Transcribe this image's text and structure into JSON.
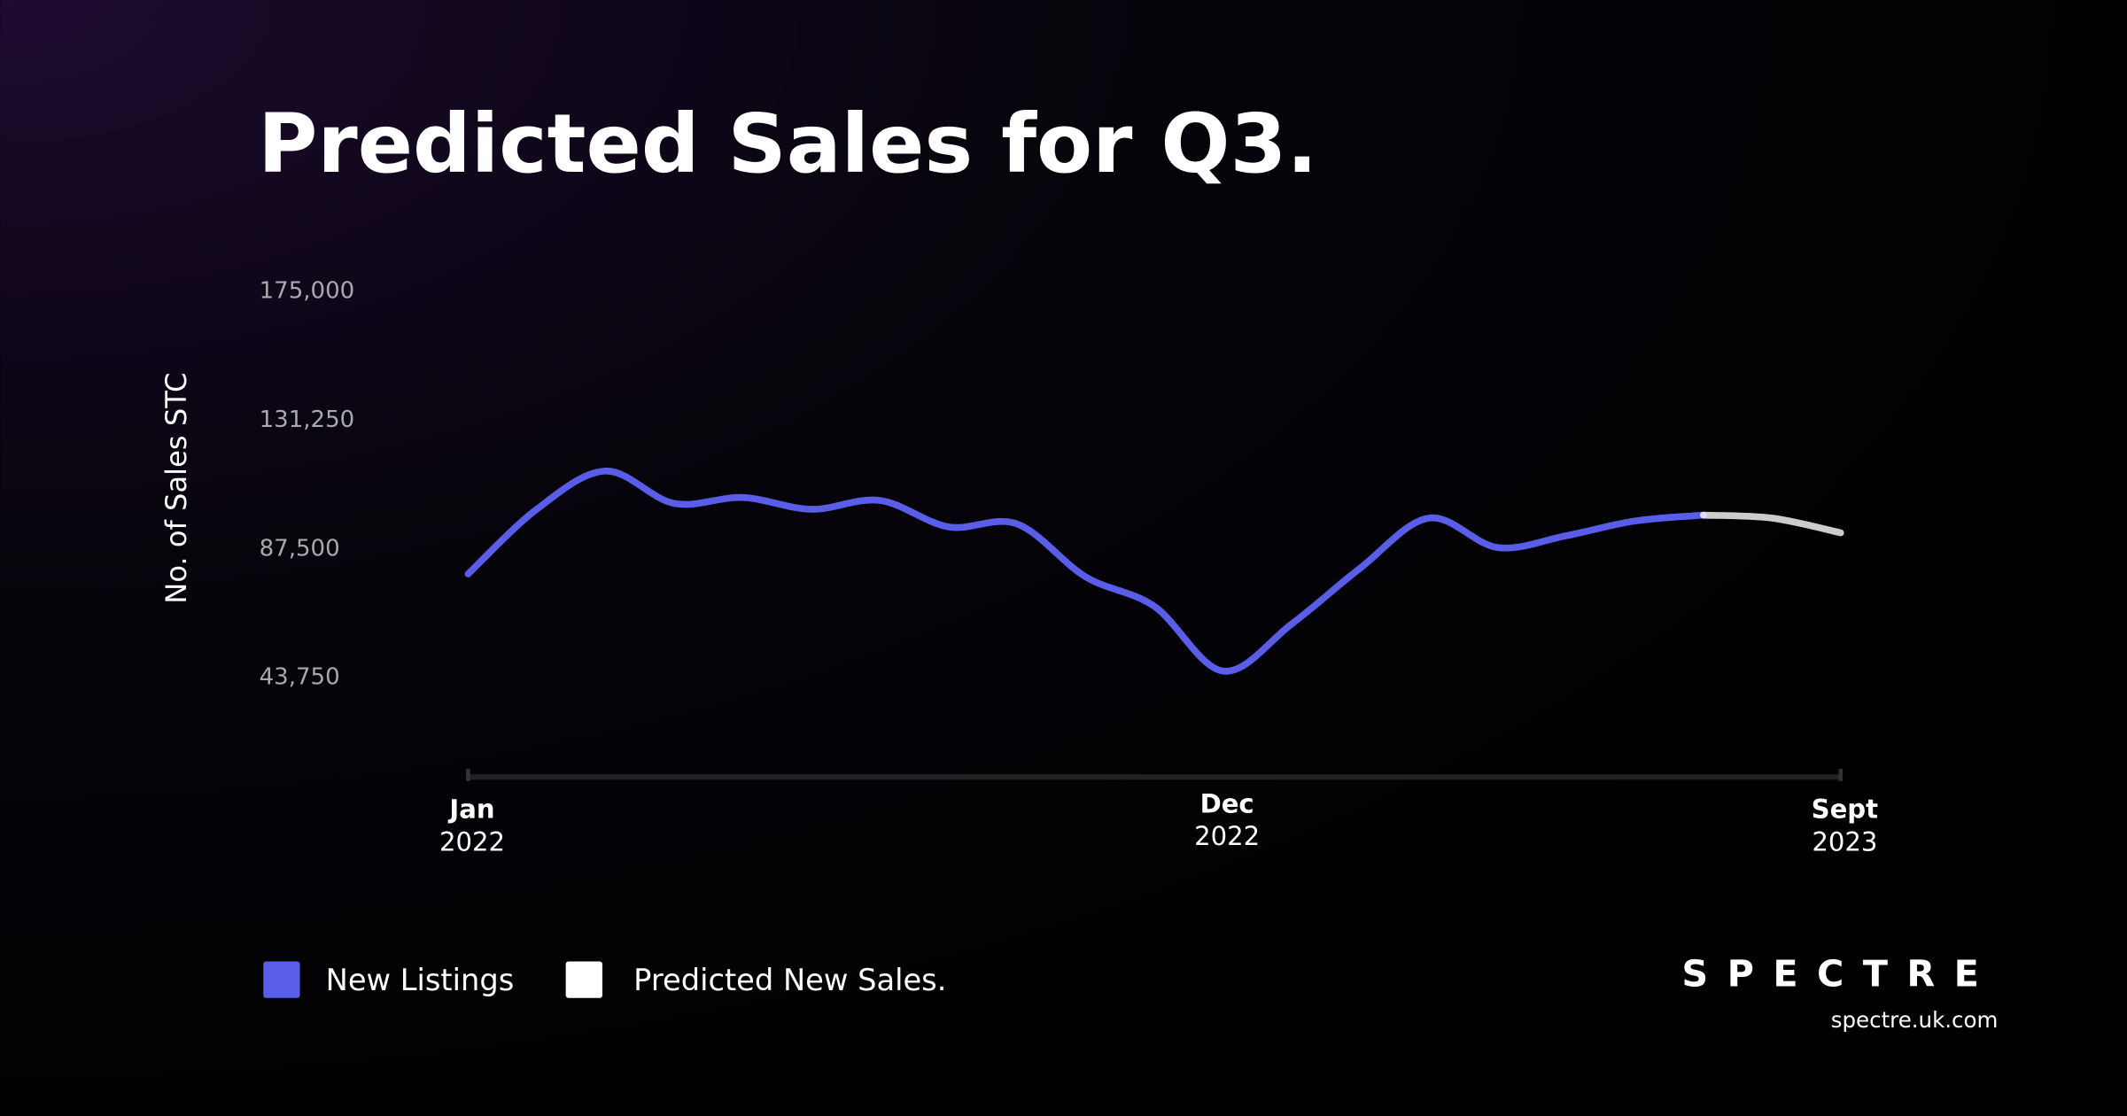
{
  "chart_data": {
    "type": "line",
    "title": "Predicted Sales for Q3.",
    "y_label": "No. of Sales STC",
    "categories": [
      {
        "month": "Jan",
        "year": "2022"
      },
      null,
      null,
      null,
      null,
      null,
      null,
      null,
      null,
      null,
      null,
      {
        "month": "Dec",
        "year": "2022"
      },
      null,
      null,
      null,
      null,
      null,
      null,
      null,
      null,
      {
        "month": "Sept",
        "year": "2023"
      }
    ],
    "series": [
      {
        "name": "New Listings",
        "color": "#5a5de8",
        "values": [
          79000,
          101000,
          114000,
          103000,
          105000,
          101000,
          104000,
          95000,
          96000,
          78000,
          68000,
          46000,
          62000,
          81000,
          98000,
          88000,
          92000,
          97000,
          99000,
          null,
          null
        ]
      },
      {
        "name": "Predicted New Sales.",
        "color": "#ffffff",
        "values": [
          null,
          null,
          null,
          null,
          null,
          null,
          null,
          null,
          null,
          null,
          null,
          null,
          null,
          null,
          null,
          null,
          null,
          null,
          99000,
          98000,
          93000
        ]
      }
    ],
    "ylim": [
      10000,
      175000
    ],
    "yticks": [
      {
        "value": 175000,
        "label": "175,000"
      },
      {
        "value": 131250,
        "label": "131,250"
      },
      {
        "value": 87500,
        "label": "87,500"
      },
      {
        "value": 43750,
        "label": "43,750"
      }
    ],
    "grid": false
  },
  "brand": {
    "name": "SPECTRE",
    "url": "spectre.uk.com"
  }
}
